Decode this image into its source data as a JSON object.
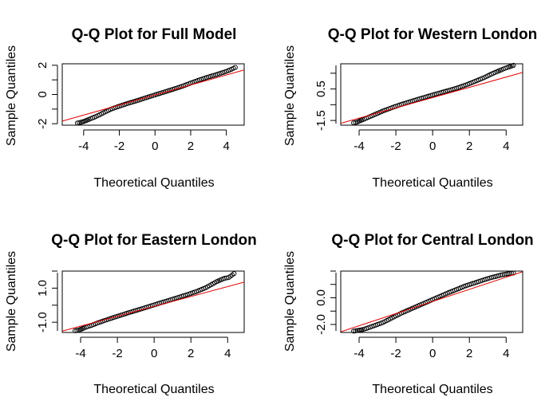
{
  "chart_data": [
    {
      "type": "scatter",
      "title": "Q-Q Plot for Full Model",
      "xlabel": "Theoretical Quantiles",
      "ylabel": "Sample Quantiles",
      "xlim": [
        -5.2,
        5.0
      ],
      "ylim": [
        -2.1,
        2.1
      ],
      "xticks": [
        -4,
        -2,
        0,
        2,
        4
      ],
      "xtick_labels": [
        "-4",
        "-2",
        "0",
        "2",
        "4"
      ],
      "yticks": [
        -2,
        0,
        2
      ],
      "ytick_labels": [
        "-2",
        "0",
        "2"
      ],
      "series": [
        {
          "x": [
            -4.35,
            -4.15,
            -4.0,
            -3.85,
            -3.7,
            -3.5,
            -3.3,
            -3.0,
            -2.5,
            -2.0,
            -1.5,
            -1.0,
            -0.5,
            0.0,
            0.5,
            1.0,
            1.5,
            2.0,
            2.5,
            3.0,
            3.5,
            3.8,
            4.0,
            4.2,
            4.5
          ],
          "y": [
            -1.95,
            -1.9,
            -1.85,
            -1.78,
            -1.7,
            -1.6,
            -1.5,
            -1.32,
            -1.02,
            -0.8,
            -0.6,
            -0.42,
            -0.22,
            -0.03,
            0.16,
            0.35,
            0.55,
            0.78,
            1.0,
            1.2,
            1.38,
            1.5,
            1.58,
            1.68,
            1.85
          ]
        }
      ],
      "reference_line": {
        "x": [
          -5.2,
          5.0
        ],
        "y": [
          -1.82,
          1.68
        ]
      }
    },
    {
      "type": "scatter",
      "title": "Q-Q Plot for Western London",
      "xlabel": "Theoretical Quantiles",
      "ylabel": "Sample Quantiles",
      "xlim": [
        -5.0,
        4.9
      ],
      "ylim": [
        -1.8,
        2.1
      ],
      "xticks": [
        -4,
        -2,
        0,
        2,
        4
      ],
      "xtick_labels": [
        "-4",
        "-2",
        "0",
        "2",
        "4"
      ],
      "yticks": [
        -1.5,
        0.5
      ],
      "ytick_labels": [
        "-1.5",
        "0.5"
      ],
      "series": [
        {
          "x": [
            -4.3,
            -4.1,
            -3.95,
            -3.8,
            -3.6,
            -3.4,
            -3.1,
            -2.7,
            -2.2,
            -1.7,
            -1.2,
            -0.7,
            -0.2,
            0.3,
            0.8,
            1.3,
            1.8,
            2.3,
            2.8,
            3.2,
            3.5,
            3.75,
            3.95,
            4.15,
            4.4
          ],
          "y": [
            -1.65,
            -1.6,
            -1.52,
            -1.45,
            -1.35,
            -1.25,
            -1.1,
            -0.9,
            -0.68,
            -0.48,
            -0.3,
            -0.12,
            0.05,
            0.22,
            0.38,
            0.55,
            0.75,
            0.98,
            1.22,
            1.45,
            1.6,
            1.72,
            1.82,
            1.9,
            2.0
          ]
        }
      ],
      "reference_line": {
        "x": [
          -5.0,
          4.9
        ],
        "y": [
          -1.68,
          1.55
        ]
      }
    },
    {
      "type": "scatter",
      "title": "Q-Q Plot for Eastern London",
      "xlabel": "Theoretical Quantiles",
      "ylabel": "Sample Quantiles",
      "xlim": [
        -5.0,
        4.9
      ],
      "ylim": [
        -1.6,
        2.0
      ],
      "xticks": [
        -4,
        -2,
        0,
        2,
        4
      ],
      "xtick_labels": [
        "-4",
        "-2",
        "0",
        "2",
        "4"
      ],
      "yticks": [
        -1.0,
        1.0
      ],
      "ytick_labels": [
        "-1.0",
        "1.0"
      ],
      "series": [
        {
          "x": [
            -4.3,
            -4.1,
            -3.95,
            -3.8,
            -3.6,
            -3.4,
            -3.1,
            -2.7,
            -2.2,
            -1.7,
            -1.2,
            -0.7,
            -0.2,
            0.3,
            0.8,
            1.3,
            1.8,
            2.3,
            2.8,
            3.1,
            3.4,
            3.65,
            3.85,
            4.05,
            4.35
          ],
          "y": [
            -1.5,
            -1.46,
            -1.4,
            -1.33,
            -1.25,
            -1.18,
            -1.05,
            -0.9,
            -0.72,
            -0.55,
            -0.38,
            -0.22,
            -0.05,
            0.12,
            0.28,
            0.45,
            0.62,
            0.8,
            1.02,
            1.2,
            1.38,
            1.5,
            1.58,
            1.62,
            1.85
          ]
        }
      ],
      "reference_line": {
        "x": [
          -5.0,
          4.9
        ],
        "y": [
          -1.52,
          1.35
        ]
      }
    },
    {
      "type": "scatter",
      "title": "Q-Q Plot for Central London",
      "xlabel": "Theoretical Quantiles",
      "ylabel": "Sample Quantiles",
      "xlim": [
        -5.0,
        4.9
      ],
      "ylim": [
        -2.6,
        2.0
      ],
      "xticks": [
        -4,
        -2,
        0,
        2,
        4
      ],
      "xtick_labels": [
        "-4",
        "-2",
        "0",
        "2",
        "4"
      ],
      "yticks": [
        -2.0,
        0.0
      ],
      "ytick_labels": [
        "-2.0",
        "0.0"
      ],
      "series": [
        {
          "x": [
            -4.3,
            -4.1,
            -3.95,
            -3.8,
            -3.6,
            -3.4,
            -3.1,
            -2.7,
            -2.2,
            -1.7,
            -1.2,
            -0.7,
            -0.2,
            0.3,
            0.8,
            1.3,
            1.8,
            2.3,
            2.8,
            3.2,
            3.5,
            3.7,
            3.9,
            4.1,
            4.4
          ],
          "y": [
            -2.5,
            -2.45,
            -2.42,
            -2.38,
            -2.3,
            -2.2,
            -2.05,
            -1.85,
            -1.5,
            -1.15,
            -0.85,
            -0.55,
            -0.25,
            0.05,
            0.35,
            0.62,
            0.9,
            1.12,
            1.35,
            1.52,
            1.62,
            1.7,
            1.75,
            1.8,
            1.85
          ]
        }
      ],
      "reference_line": {
        "x": [
          -5.0,
          4.9
        ],
        "y": [
          -2.55,
          1.95
        ]
      }
    }
  ]
}
